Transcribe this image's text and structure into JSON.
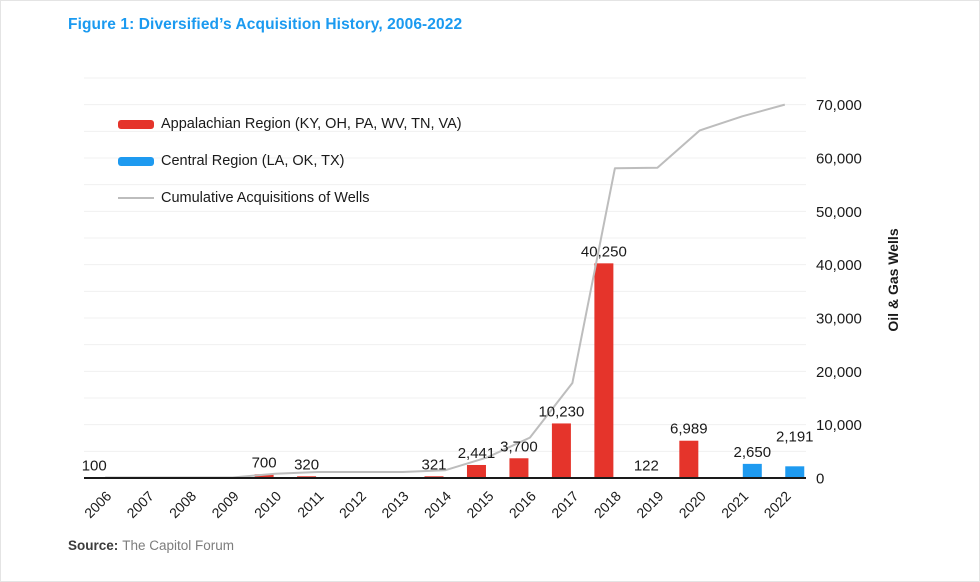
{
  "page": {
    "title": "Figure 1: Diversified’s Acquisition History, 2006-2022",
    "source_label": "Source:",
    "source_text": "The Capitol Forum"
  },
  "colors": {
    "title_blue": "#1b9af0",
    "appalachian_red": "#e5342b",
    "central_blue": "#1e9af0",
    "cumulative_gray": "#bdbdbd",
    "gridline": "#f0f0f0",
    "axis": "#1a1a1a",
    "text": "#1a1a1a",
    "source_label_color": "#3c3c3c",
    "source_text_color": "#7d7d7d"
  },
  "legend": {
    "items": [
      {
        "label": "Appalachian Region (KY, OH, PA, WV, TN, VA)",
        "type": "bar",
        "color": "#e5342b"
      },
      {
        "label": "Central Region (LA, OK, TX)",
        "type": "bar",
        "color": "#1e9af0"
      },
      {
        "label": "Cumulative Acquisitions of Wells",
        "type": "line",
        "color": "#bdbdbd"
      }
    ]
  },
  "chart_data": {
    "type": "bar",
    "title": "Figure 1: Diversified’s Acquisition History, 2006-2022",
    "categories": [
      "2006",
      "2007",
      "2008",
      "2009",
      "2010",
      "2011",
      "2012",
      "2013",
      "2014",
      "2015",
      "2016",
      "2017",
      "2018",
      "2019",
      "2020",
      "2021",
      "2022"
    ],
    "series": [
      {
        "name": "Appalachian Region (KY, OH, PA, WV, TN, VA)",
        "type": "bar",
        "color": "#e5342b",
        "values": [
          100,
          0,
          0,
          0,
          700,
          320,
          0,
          0,
          321,
          2441,
          3700,
          10230,
          40250,
          122,
          6989,
          0,
          0
        ]
      },
      {
        "name": "Central Region (LA, OK, TX)",
        "type": "bar",
        "color": "#1e9af0",
        "values": [
          0,
          0,
          0,
          0,
          0,
          0,
          0,
          0,
          0,
          0,
          0,
          0,
          0,
          0,
          0,
          2650,
          2191
        ]
      },
      {
        "name": "Cumulative Acquisitions of Wells",
        "type": "line",
        "color": "#bdbdbd",
        "values": [
          100,
          100,
          100,
          100,
          800,
          1120,
          1120,
          1120,
          1441,
          3882,
          7582,
          17812,
          58062,
          58184,
          65173,
          67823,
          70014
        ]
      }
    ],
    "bar_labels": [
      "100",
      "",
      "",
      "",
      "700",
      "320",
      "",
      "",
      "321",
      "2,441",
      "3,700",
      "10,230",
      "40,250",
      "122",
      "6,989",
      "2,650",
      "2,191"
    ],
    "label_raise": {
      "2022": 18
    },
    "xlabel": "",
    "ylabel": "Oil & Gas Wells",
    "yticks": [
      {
        "v": 0,
        "label": "0"
      },
      {
        "v": 10000,
        "label": "10,000"
      },
      {
        "v": 20000,
        "label": "20,000"
      },
      {
        "v": 30000,
        "label": "30,000"
      },
      {
        "v": 40000,
        "label": "40,000"
      },
      {
        "v": 50000,
        "label": "50,000"
      },
      {
        "v": 60000,
        "label": "60,000"
      },
      {
        "v": 70000,
        "label": "70,000"
      }
    ],
    "ylim": [
      0,
      75000
    ],
    "grid_interval": 5000,
    "grid": true,
    "legend_position": "inside-top-left",
    "y_axis_side": "right"
  }
}
